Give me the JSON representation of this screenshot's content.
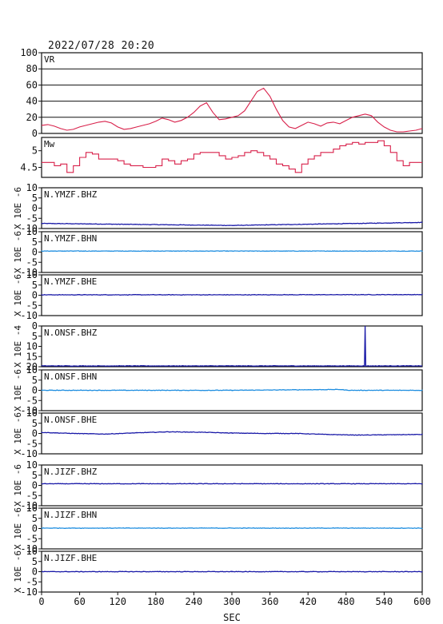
{
  "timestamp": "2022/07/28 20:20",
  "chart_data": [
    {
      "type": "line",
      "label": "VR",
      "ylim": [
        0,
        100
      ],
      "yticks": [
        0,
        20,
        40,
        60,
        80,
        100
      ],
      "grid": true,
      "color": "#d8204a",
      "x": [
        0,
        10,
        20,
        30,
        40,
        50,
        60,
        70,
        80,
        90,
        100,
        110,
        120,
        130,
        140,
        150,
        160,
        170,
        180,
        190,
        200,
        210,
        220,
        230,
        240,
        250,
        260,
        270,
        280,
        290,
        300,
        310,
        320,
        330,
        340,
        350,
        360,
        370,
        380,
        390,
        400,
        410,
        420,
        430,
        440,
        450,
        460,
        470,
        480,
        490,
        500,
        510,
        520,
        530,
        540,
        550,
        560,
        570,
        580,
        590,
        600
      ],
      "y": [
        10,
        11,
        9,
        6,
        4,
        5,
        8,
        10,
        12,
        14,
        15,
        13,
        8,
        5,
        6,
        8,
        10,
        12,
        15,
        19,
        17,
        14,
        16,
        20,
        26,
        34,
        38,
        26,
        17,
        18,
        20,
        22,
        28,
        40,
        52,
        56,
        46,
        30,
        16,
        8,
        6,
        10,
        14,
        12,
        9,
        13,
        14,
        12,
        16,
        20,
        22,
        24,
        22,
        14,
        8,
        4,
        2,
        2,
        3,
        4,
        6
      ]
    },
    {
      "type": "line",
      "label": "Mw",
      "ylim": [
        4.2,
        5.4
      ],
      "yticks": [
        4.5,
        5.0
      ],
      "grid": false,
      "color": "#d8204a",
      "x": [
        0,
        10,
        20,
        30,
        40,
        50,
        60,
        70,
        80,
        90,
        100,
        110,
        120,
        130,
        140,
        150,
        160,
        170,
        180,
        190,
        200,
        210,
        220,
        230,
        240,
        250,
        260,
        270,
        280,
        290,
        300,
        310,
        320,
        330,
        340,
        350,
        360,
        370,
        380,
        390,
        400,
        410,
        420,
        430,
        440,
        450,
        460,
        470,
        480,
        490,
        500,
        510,
        520,
        530,
        540,
        550,
        560,
        570,
        580,
        590,
        600
      ],
      "y": [
        4.65,
        4.65,
        4.55,
        4.6,
        4.35,
        4.55,
        4.8,
        4.95,
        4.9,
        4.75,
        4.75,
        4.75,
        4.7,
        4.6,
        4.55,
        4.55,
        4.5,
        4.5,
        4.55,
        4.75,
        4.7,
        4.6,
        4.7,
        4.75,
        4.9,
        4.95,
        4.95,
        4.95,
        4.85,
        4.75,
        4.8,
        4.85,
        4.95,
        5.0,
        4.95,
        4.85,
        4.75,
        4.6,
        4.55,
        4.45,
        4.35,
        4.6,
        4.75,
        4.85,
        4.95,
        4.95,
        5.05,
        5.15,
        5.2,
        5.25,
        5.2,
        5.25,
        5.25,
        5.3,
        5.15,
        4.95,
        4.7,
        4.55,
        4.65,
        4.65,
        4.65
      ]
    },
    {
      "type": "line",
      "label": "N.YMZF.BHZ",
      "ylim": [
        -10,
        10
      ],
      "yticks": [
        10,
        5,
        0,
        -5,
        -10
      ],
      "unit": "X 10E -6",
      "color": "#1a1aa8",
      "x": [
        0,
        300,
        600
      ],
      "y": [
        -7.5,
        -8.5,
        -7.0
      ]
    },
    {
      "type": "line",
      "label": "N.YMZF.BHN",
      "ylim": [
        -10,
        10
      ],
      "yticks": [
        10,
        5,
        0,
        -5,
        -10
      ],
      "unit": "X 10E -6",
      "color": "#1f8ee0",
      "x": [
        0,
        300,
        600
      ],
      "y": [
        0.5,
        0.5,
        0.5
      ]
    },
    {
      "type": "line",
      "label": "N.YMZF.BHE",
      "ylim": [
        -10,
        10
      ],
      "yticks": [
        10,
        5,
        0,
        -5,
        -10
      ],
      "unit": "X 10E -6",
      "color": "#1a1aa8",
      "x": [
        0,
        300,
        600
      ],
      "y": [
        0.2,
        0.2,
        0.3
      ]
    },
    {
      "type": "line",
      "label": "N.ONSF.BHZ",
      "ylim": [
        -20,
        0
      ],
      "yticks": [
        0,
        -5,
        -10,
        -15,
        -20
      ],
      "tick_labels": [
        "0",
        "5",
        "10",
        "15",
        "20"
      ],
      "unit": "X 10E -4",
      "color": "#1a1aa8",
      "x": [
        0,
        500,
        509,
        510,
        511,
        600
      ],
      "y": [
        -19.6,
        -19.6,
        -19.6,
        0,
        -19.6,
        -19.6
      ]
    },
    {
      "type": "line",
      "label": "N.ONSF.BHN",
      "ylim": [
        -10,
        10
      ],
      "yticks": [
        10,
        5,
        0,
        -5,
        -10
      ],
      "unit": "X 10E -6",
      "color": "#1f8ee0",
      "x": [
        0,
        300,
        470,
        480,
        490,
        600
      ],
      "y": [
        0,
        0,
        0.4,
        0.1,
        0,
        0
      ]
    },
    {
      "type": "line",
      "label": "N.ONSF.BHE",
      "ylim": [
        -10,
        10
      ],
      "yticks": [
        10,
        5,
        0,
        -5,
        -10
      ],
      "unit": "X 10E -6",
      "color": "#1a1aa8",
      "x": [
        0,
        50,
        100,
        150,
        200,
        250,
        300,
        350,
        400,
        450,
        500,
        600
      ],
      "y": [
        0.5,
        0,
        -0.3,
        0.3,
        0.8,
        0.6,
        0.2,
        0,
        0,
        -0.5,
        -0.8,
        -0.5
      ]
    },
    {
      "type": "line",
      "label": "N.JIZF.BHZ",
      "ylim": [
        -10,
        10
      ],
      "yticks": [
        10,
        5,
        0,
        -5,
        -10
      ],
      "unit": "X 10E -6",
      "color": "#1a1aa8",
      "x": [
        0,
        300,
        600
      ],
      "y": [
        0.8,
        0.8,
        0.8
      ]
    },
    {
      "type": "line",
      "label": "N.JIZF.BHN",
      "ylim": [
        -10,
        10
      ],
      "yticks": [
        10,
        5,
        0,
        -5,
        -10
      ],
      "unit": "X 10E -6",
      "color": "#1f8ee0",
      "x": [
        0,
        300,
        600
      ],
      "y": [
        0.2,
        0.2,
        0.2
      ]
    },
    {
      "type": "line",
      "label": "N.JIZF.BHE",
      "ylim": [
        -10,
        10
      ],
      "yticks": [
        10,
        5,
        0,
        -5,
        -10
      ],
      "unit": "X 10E -6",
      "color": "#1a1aa8",
      "x": [
        0,
        300,
        600
      ],
      "y": [
        0,
        0,
        0
      ]
    }
  ],
  "x_axis": {
    "xlabel": "SEC",
    "xlim": [
      0,
      600
    ],
    "xticks": [
      0,
      60,
      120,
      180,
      240,
      300,
      360,
      420,
      480,
      540,
      600
    ]
  }
}
